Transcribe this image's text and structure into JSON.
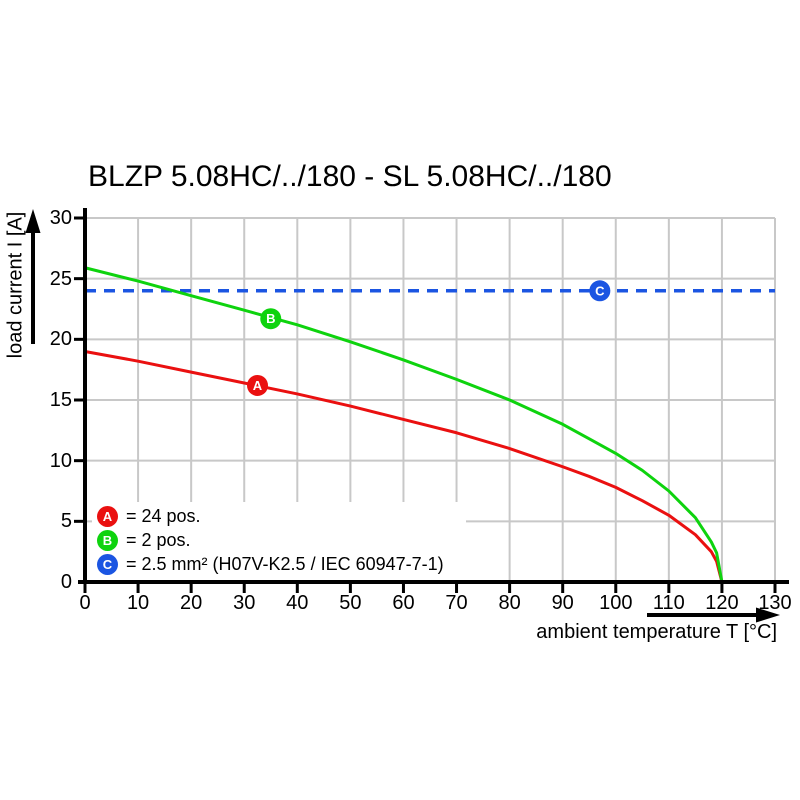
{
  "chart_data": {
    "type": "line",
    "title": "BLZP 5.08HC/../180 - SL 5.08HC/../180",
    "xlabel": "ambient temperature T [°C]",
    "ylabel": "load current I [A]",
    "xlim": [
      0,
      130
    ],
    "ylim": [
      0,
      30
    ],
    "xticks": [
      0,
      10,
      20,
      30,
      40,
      50,
      60,
      70,
      80,
      90,
      100,
      110,
      120,
      130
    ],
    "yticks": [
      0,
      5,
      10,
      15,
      20,
      25,
      30
    ],
    "grid": true,
    "axis_arrows": true,
    "series": [
      {
        "id": "A",
        "name": "24 pos.",
        "color": "#ea1010",
        "style": "solid",
        "x": [
          0,
          10,
          20,
          30,
          40,
          50,
          60,
          70,
          80,
          90,
          95,
          100,
          105,
          110,
          115,
          118,
          119,
          120
        ],
        "y": [
          19.0,
          18.2,
          17.3,
          16.4,
          15.5,
          14.5,
          13.4,
          12.3,
          11.0,
          9.5,
          8.7,
          7.8,
          6.7,
          5.5,
          3.9,
          2.5,
          1.7,
          0
        ]
      },
      {
        "id": "B",
        "name": "2 pos.",
        "color": "#0ed30e",
        "style": "solid",
        "x": [
          0,
          10,
          20,
          30,
          40,
          50,
          60,
          70,
          80,
          90,
          95,
          100,
          105,
          110,
          115,
          118,
          119,
          120
        ],
        "y": [
          25.9,
          24.8,
          23.6,
          22.4,
          21.2,
          19.8,
          18.3,
          16.7,
          15.0,
          13.0,
          11.8,
          10.6,
          9.2,
          7.5,
          5.3,
          3.3,
          2.4,
          0
        ]
      },
      {
        "id": "C",
        "name": "2.5 mm² (H07V-K2.5 / IEC 60947-7-1)",
        "color": "#1b55e2",
        "style": "dashed",
        "x": [
          0,
          130
        ],
        "y": [
          24,
          24
        ]
      }
    ],
    "point_markers": [
      {
        "letter": "A",
        "t": 32.5,
        "i": 16.2,
        "color": "#ea1010"
      },
      {
        "letter": "B",
        "t": 35,
        "i": 21.7,
        "color": "#0ed30e"
      },
      {
        "letter": "C",
        "t": 97,
        "i": 24,
        "color": "#1b55e2"
      }
    ],
    "legend": {
      "position": "bottom-left-inside",
      "items": [
        {
          "letter": "A",
          "color": "#ea1010",
          "label": "= 24 pos."
        },
        {
          "letter": "B",
          "color": "#0ed30e",
          "label": "= 2 pos."
        },
        {
          "letter": "C",
          "color": "#1b55e2",
          "label": "= 2.5 mm² (H07V-K2.5 / IEC 60947-7-1)"
        }
      ]
    }
  },
  "colors": {
    "background": "#ffffff",
    "grid": "#c8c8c8",
    "axis": "#000000",
    "marker_text": "#ffffff"
  }
}
